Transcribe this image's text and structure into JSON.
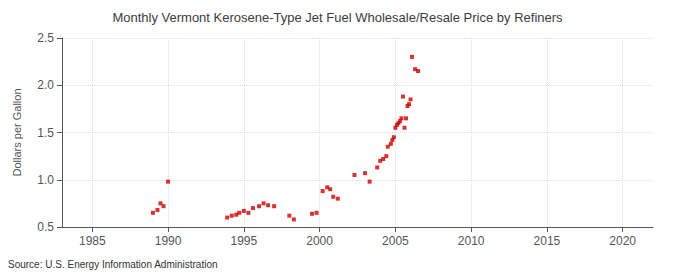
{
  "chart_data": {
    "type": "scatter",
    "title": "Monthly Vermont Kerosene-Type Jet Fuel Wholesale/Resale Price by Refiners",
    "ylabel": "Dollars per Gallon",
    "annotation": "Source: U.S. Energy Information Administration",
    "x": [
      1989.0,
      1989.3,
      1989.5,
      1989.7,
      1990.0,
      1993.9,
      1994.2,
      1994.5,
      1994.7,
      1995.0,
      1995.3,
      1995.6,
      1996.0,
      1996.3,
      1996.6,
      1997.0,
      1998.0,
      1998.3,
      1999.5,
      1999.8,
      2000.2,
      2000.5,
      2000.7,
      2000.9,
      2001.2,
      2002.3,
      2003.0,
      2003.3,
      2003.8,
      2004.0,
      2004.2,
      2004.4,
      2004.5,
      2004.7,
      2004.8,
      2004.9,
      2005.0,
      2005.1,
      2005.2,
      2005.3,
      2005.4,
      2005.5,
      2005.6,
      2005.7,
      2005.8,
      2005.9,
      2006.0,
      2006.1,
      2006.3,
      2006.5
    ],
    "values": [
      0.65,
      0.68,
      0.75,
      0.72,
      0.98,
      0.6,
      0.62,
      0.63,
      0.65,
      0.67,
      0.65,
      0.7,
      0.72,
      0.75,
      0.73,
      0.72,
      0.62,
      0.58,
      0.64,
      0.65,
      0.88,
      0.92,
      0.9,
      0.82,
      0.8,
      1.05,
      1.07,
      0.98,
      1.13,
      1.2,
      1.22,
      1.25,
      1.35,
      1.38,
      1.42,
      1.45,
      1.55,
      1.58,
      1.6,
      1.62,
      1.65,
      1.88,
      1.55,
      1.65,
      1.78,
      1.8,
      1.85,
      2.3,
      2.17,
      2.15
    ],
    "color": "#cc0000",
    "marker": "square",
    "xlim": [
      1983,
      2022
    ],
    "ylim": [
      0.5,
      2.5
    ],
    "xticks": [
      1985,
      1990,
      1995,
      2000,
      2005,
      2010,
      2015,
      2020
    ],
    "yticks": [
      0.5,
      {
        "value": 1.0,
        "label": "1.0"
      },
      1.5,
      {
        "value": 2.0,
        "label": "2.0"
      },
      2.5
    ],
    "grid": true
  }
}
